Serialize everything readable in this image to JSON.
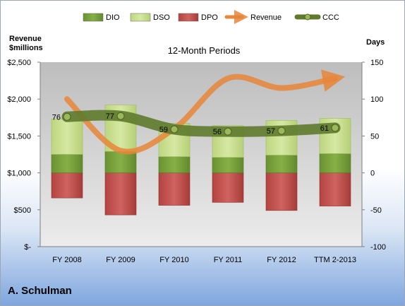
{
  "chart_data": {
    "type": "bar",
    "title": "12-Month Periods",
    "footer": "A. Schulman",
    "left_axis": {
      "label_line1": "Revenue",
      "label_line2": "$millions",
      "ticks": [
        "$-",
        "$500",
        "$1,000",
        "$1,500",
        "$2,000",
        "$2,500"
      ],
      "range": [
        0,
        2500
      ]
    },
    "right_axis": {
      "label": "Days",
      "ticks": [
        "-100",
        "-50",
        "0",
        "50",
        "100",
        "150"
      ],
      "range": [
        -100,
        150
      ]
    },
    "categories": [
      "FY 2008",
      "FY 2009",
      "FY 2010",
      "FY 2011",
      "FY 2012",
      "TTM 2-2013"
    ],
    "series": [
      {
        "name": "DIO",
        "color": "#77a23a",
        "values": [
          25,
          29,
          22,
          21,
          24,
          26
        ]
      },
      {
        "name": "DSO",
        "color": "#c9df8e",
        "values": [
          48,
          63,
          45,
          43,
          47,
          48
        ]
      },
      {
        "name": "DPO",
        "color": "#c0504d",
        "values": [
          -34,
          -57,
          -44,
          -40,
          -51,
          -45
        ]
      },
      {
        "name": "Revenue",
        "color": "#e8863a",
        "values": [
          2000,
          1300,
          1600,
          2280,
          2150,
          2280
        ]
      },
      {
        "name": "CCC",
        "color": "#5e7a2c",
        "values": [
          76,
          77,
          59,
          56,
          57,
          61
        ]
      }
    ],
    "ccc_labels": [
      "76",
      "77",
      "59",
      "56",
      "57",
      "61"
    ],
    "legend_position": "top",
    "grid": false
  }
}
